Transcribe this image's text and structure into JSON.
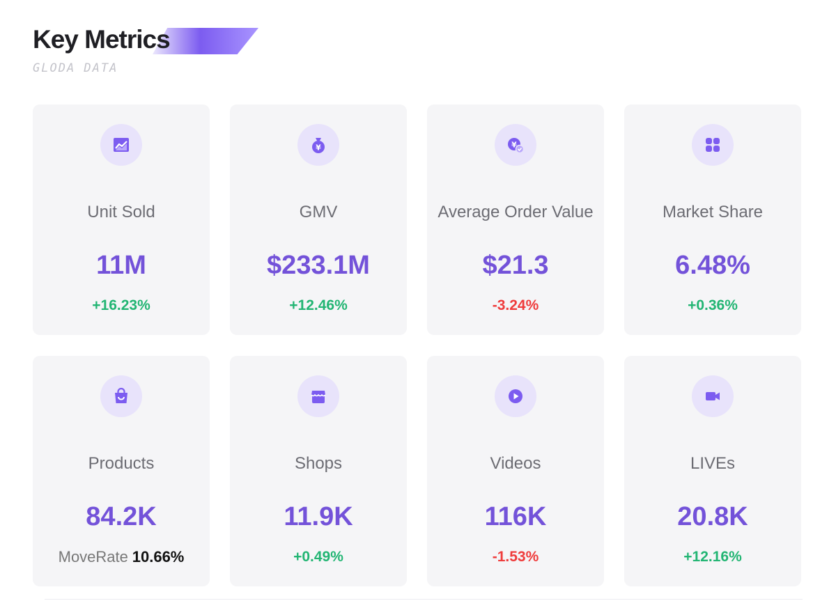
{
  "header": {
    "title": "Key Metrics",
    "subtitle": "GLODA DATA"
  },
  "colors": {
    "accent": "#7352d9",
    "positive": "#22b573",
    "negative": "#ef3b3b",
    "card_bg": "#f5f5f7",
    "icon_bg": "#e8e3fb"
  },
  "metrics": [
    {
      "icon": "trend-chart-icon",
      "label": "Unit Sold",
      "value": "11M",
      "change": "+16.23%",
      "direction": "up"
    },
    {
      "icon": "money-bag-icon",
      "label": "GMV",
      "value": "$233.1M",
      "change": "+12.46%",
      "direction": "up"
    },
    {
      "icon": "yen-check-icon",
      "label": "Average Order Value",
      "value": "$21.3",
      "change": "-3.24%",
      "direction": "down"
    },
    {
      "icon": "grid-blocks-icon",
      "label": "Market Share",
      "value": "6.48%",
      "change": "+0.36%",
      "direction": "up"
    },
    {
      "icon": "shopping-bag-icon",
      "label": "Products",
      "value": "84.2K",
      "extra_label": "MoveRate",
      "extra_value": "10.66%"
    },
    {
      "icon": "storefront-icon",
      "label": "Shops",
      "value": "11.9K",
      "change": "+0.49%",
      "direction": "up"
    },
    {
      "icon": "play-icon",
      "label": "Videos",
      "value": "116K",
      "change": "-1.53%",
      "direction": "down"
    },
    {
      "icon": "video-camera-icon",
      "label": "LIVEs",
      "value": "20.8K",
      "change": "+12.16%",
      "direction": "up"
    }
  ]
}
